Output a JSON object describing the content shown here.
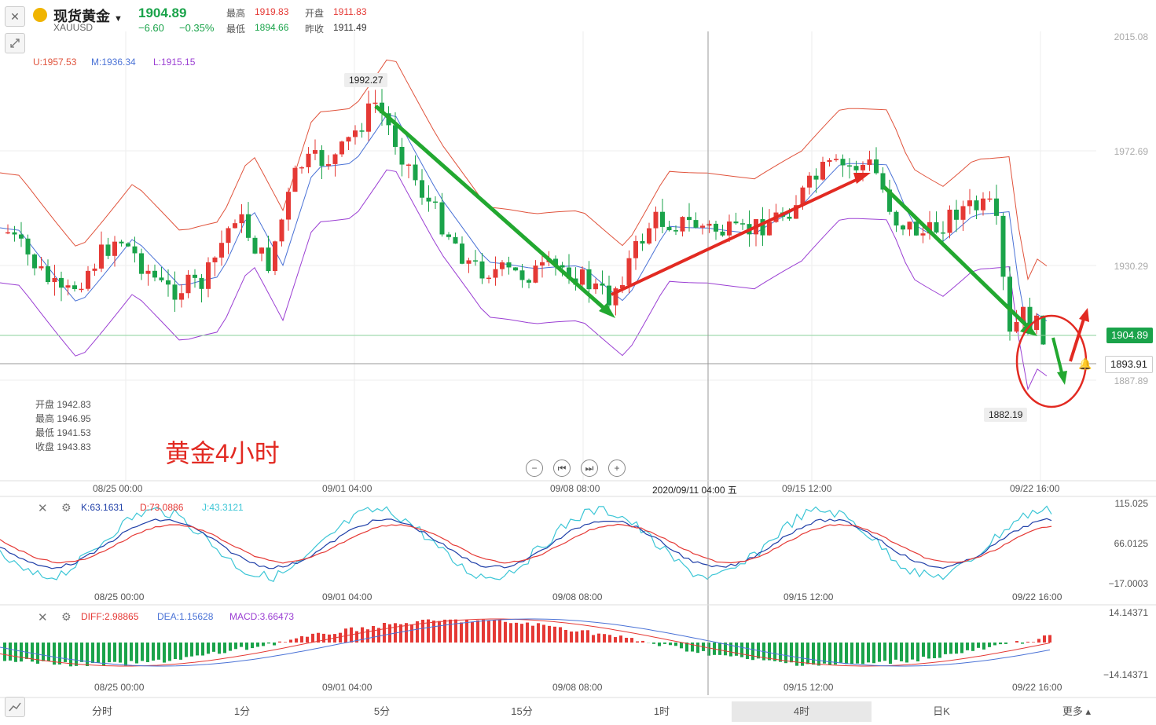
{
  "header": {
    "close_glyph": "✕",
    "symbol_name": "现货黄金",
    "symbol_code": "XAUUSD",
    "price": "1904.89",
    "change": "−6.60",
    "change_pct": "−0.35%",
    "high_label": "最高",
    "high_value": "1919.83",
    "open_label": "开盘",
    "open_value": "1911.83",
    "low_label": "最低",
    "low_value": "1894.66",
    "prev_label": "昨收",
    "prev_value": "1911.49"
  },
  "boll": {
    "u": "U:1957.53",
    "m": "M:1936.34",
    "l": "L:1915.15"
  },
  "ohlc_box": {
    "open": "开盘 1942.83",
    "high": "最高 1946.95",
    "low": "最低 1941.53",
    "close": "收盘 1943.83"
  },
  "annotation": "黄金4小时",
  "price_axis": [
    "2015.08",
    "1972.69",
    "1930.29",
    "1887.89"
  ],
  "current_price_tag": "1904.89",
  "crosshair_price_tag": "1893.91",
  "peak_label": "1992.27",
  "trough_label": "1882.19",
  "x_labels": [
    "08/25 00:00",
    "09/01 04:00",
    "09/08 08:00",
    "09/15 12:00",
    "09/22 16:00"
  ],
  "crosshair_time": "2020/09/11 04:00 五",
  "kdj": {
    "k": "K:63.1631",
    "d": "D:73.0886",
    "j": "J:43.3121",
    "axis": [
      "115.025",
      "66.0125",
      "−17.0003"
    ]
  },
  "macd": {
    "diff": "DIFF:2.98865",
    "dea": "DEA:1.15628",
    "macd": "MACD:3.66473",
    "axis": [
      "14.14371",
      "−14.14371"
    ]
  },
  "tabs": [
    "分时",
    "1分",
    "5分",
    "15分",
    "1时",
    "4时",
    "日K",
    "更多"
  ],
  "active_tab": "4时",
  "colors": {
    "up": "#e53935",
    "down": "#1aa34a",
    "mid": "#4a72d6",
    "upper": "#e0533c",
    "lower": "#9b3fd3"
  }
}
